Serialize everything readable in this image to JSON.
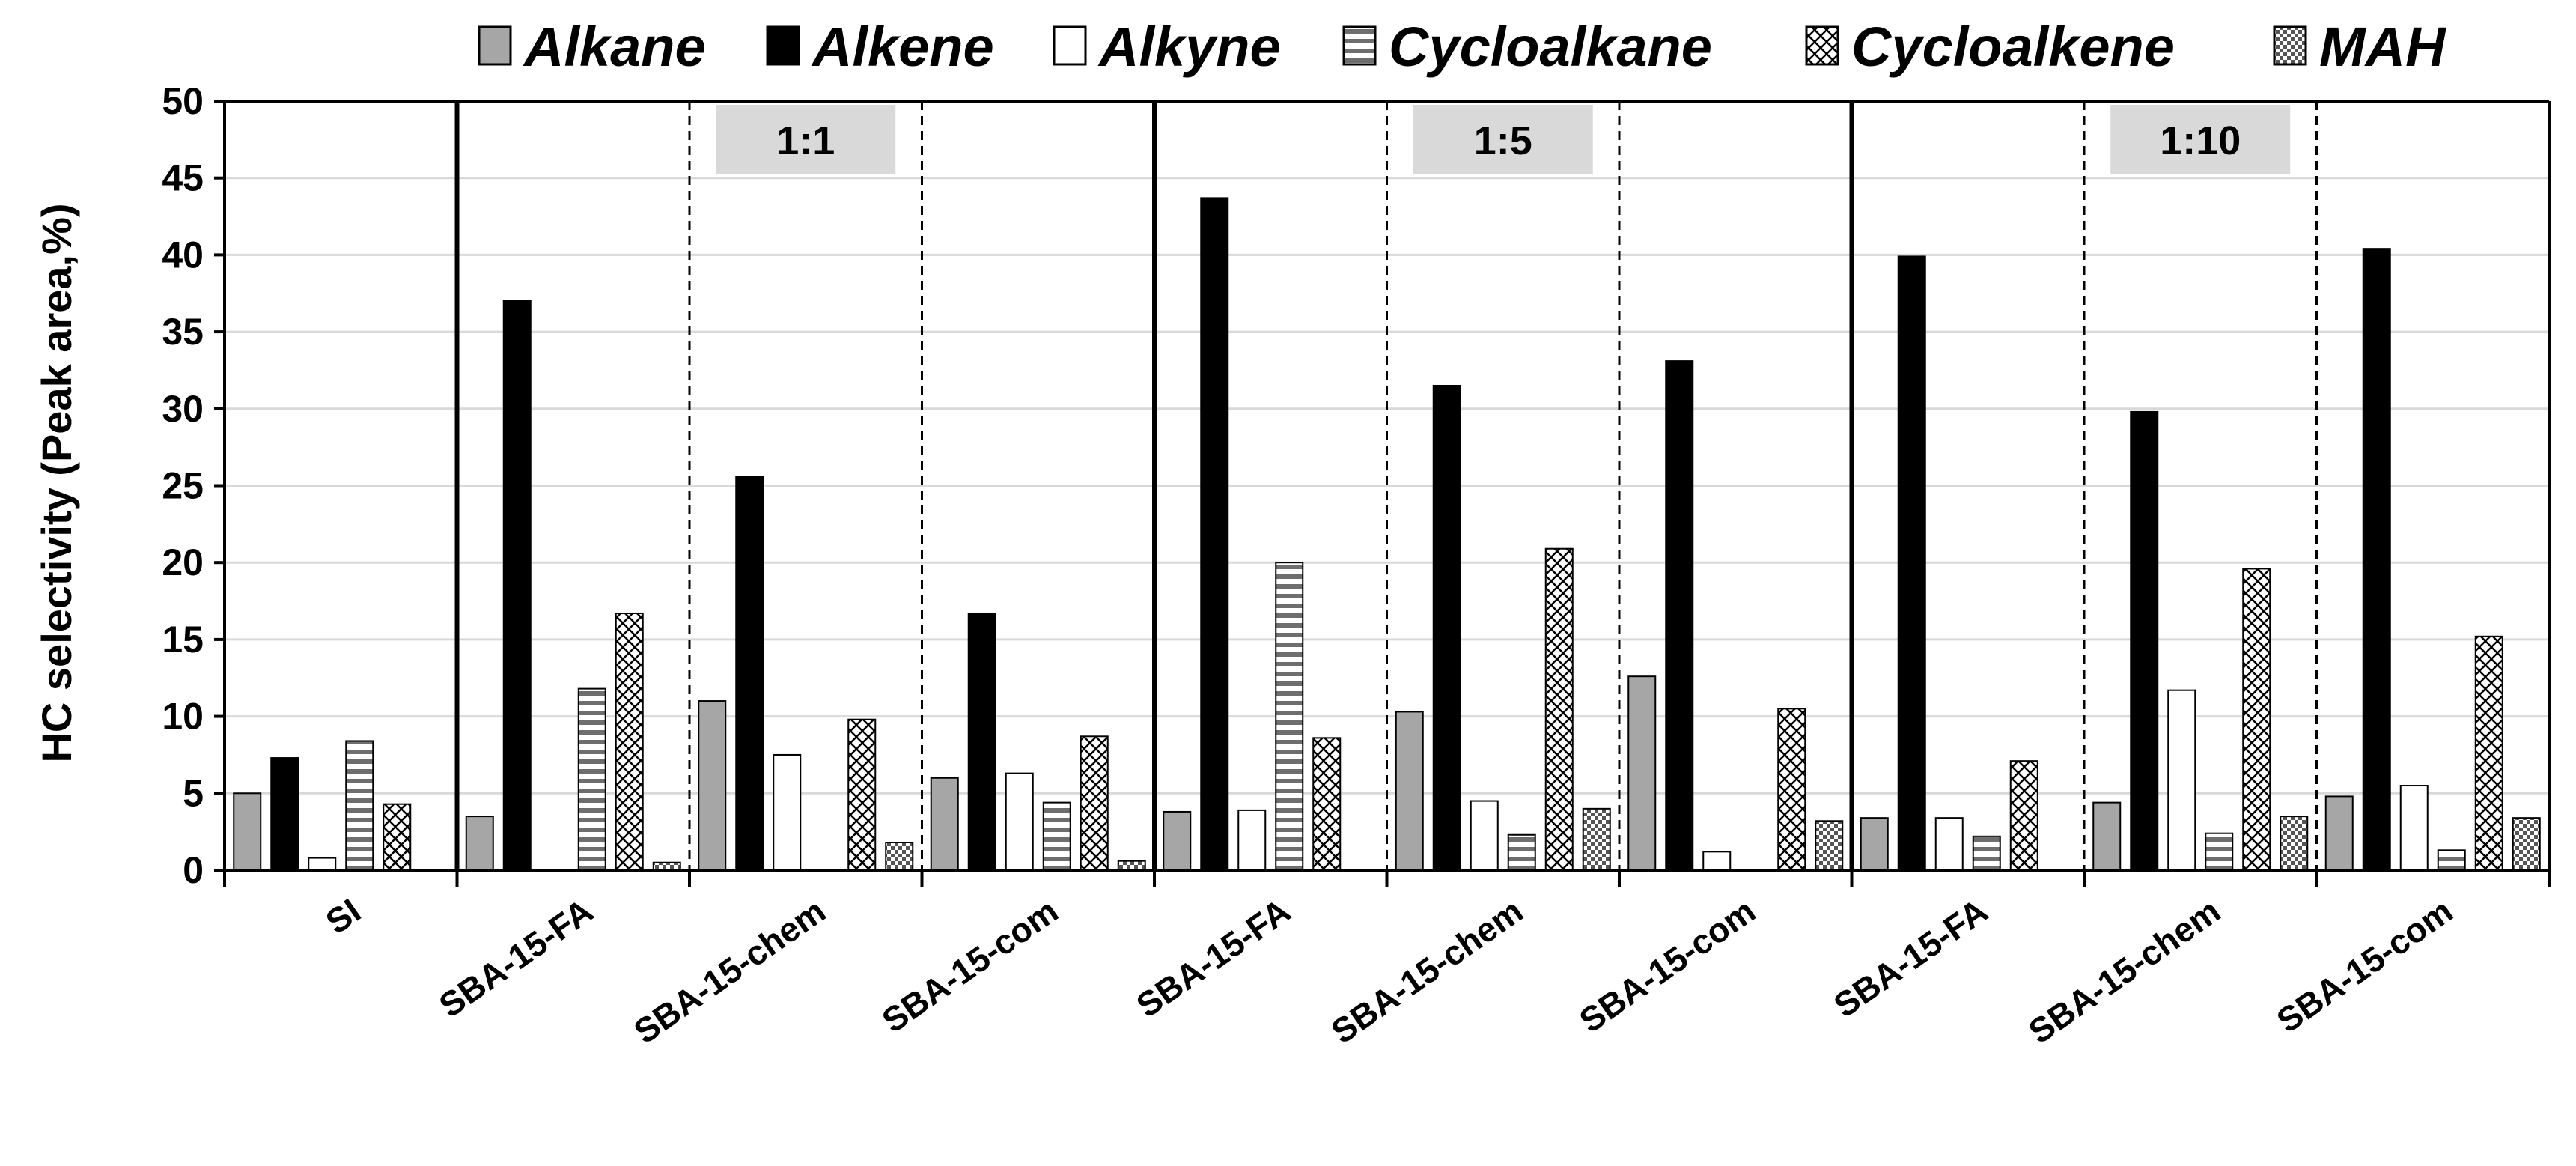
{
  "chart_data": {
    "type": "bar",
    "ylabel": "HC selectivity (Peak area,%)",
    "xlabel": "",
    "ylim": [
      0,
      50
    ],
    "yticks": [
      "0",
      "5",
      "10",
      "15",
      "20",
      "25",
      "30",
      "35",
      "40",
      "45",
      "50"
    ],
    "ytick_values": [
      0,
      5,
      10,
      15,
      20,
      25,
      30,
      35,
      40,
      45,
      50
    ],
    "gridlines": true,
    "legend_position": "top",
    "categories": [
      "SI",
      "SBA-15-FA",
      "SBA-15-chem",
      "SBA-15-com",
      "SBA-15-FA",
      "SBA-15-chem",
      "SBA-15-com",
      "SBA-15-FA",
      "SBA-15-chem",
      "SBA-15-com"
    ],
    "groups": [
      {
        "label": "1:1",
        "categories": [
          1,
          2,
          3
        ]
      },
      {
        "label": "1:5",
        "categories": [
          4,
          5,
          6
        ]
      },
      {
        "label": "1:10",
        "categories": [
          7,
          8,
          9
        ]
      }
    ],
    "series": [
      {
        "name": "Alkane",
        "pattern": "gray-fill",
        "color": "#a6a6a6",
        "values": [
          5.0,
          3.5,
          11.0,
          6.0,
          3.8,
          10.3,
          12.6,
          3.4,
          4.4,
          4.8
        ]
      },
      {
        "name": "Alkene",
        "pattern": "black-fill",
        "color": "#000000",
        "values": [
          7.3,
          37.0,
          25.6,
          16.7,
          43.7,
          31.5,
          33.1,
          39.9,
          29.8,
          40.4
        ]
      },
      {
        "name": "Alkyne",
        "pattern": "white-fill",
        "color": "#ffffff",
        "values": [
          0.8,
          0.0,
          7.5,
          6.3,
          3.9,
          4.5,
          1.2,
          3.4,
          11.7,
          5.5
        ]
      },
      {
        "name": "Cycloalkane",
        "pattern": "horizontal-stripes",
        "color": "#808080",
        "values": [
          8.4,
          11.8,
          0.0,
          4.4,
          20.0,
          2.3,
          0.0,
          2.2,
          2.4,
          1.3
        ]
      },
      {
        "name": "Cycloalkene",
        "pattern": "diamond-lattice",
        "color": "#000000",
        "values": [
          4.3,
          16.7,
          9.8,
          8.7,
          8.6,
          20.9,
          10.5,
          7.1,
          19.6,
          15.2
        ]
      },
      {
        "name": "MAH",
        "pattern": "checkerboard",
        "color": "#606060",
        "values": [
          0.0,
          0.5,
          1.8,
          0.6,
          0.0,
          4.0,
          3.2,
          0.0,
          3.5,
          3.4
        ]
      }
    ]
  }
}
